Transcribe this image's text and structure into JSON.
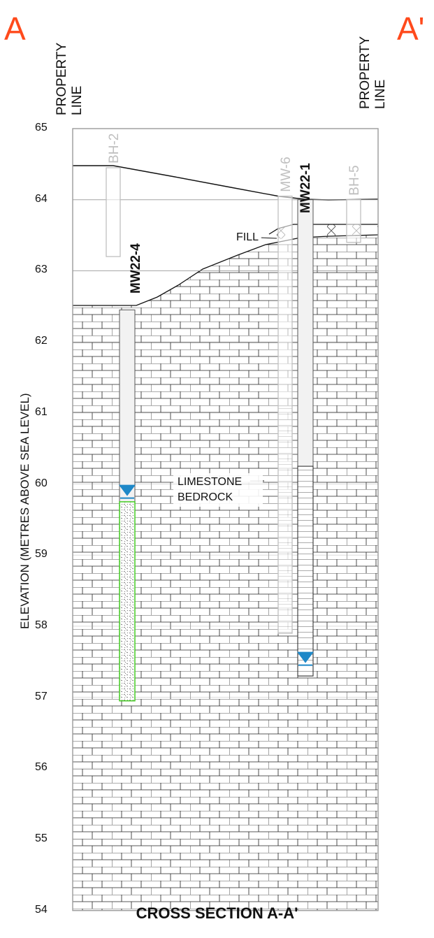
{
  "section_corners": {
    "left": "A",
    "right": "A'"
  },
  "property_lines": {
    "left": "PROPERTY\nLINE",
    "right": "PROPERTY\nLINE"
  },
  "axis": {
    "ylabel": "ELEVATION (METRES ABOVE SEA LEVEL)",
    "ticks": [
      "65",
      "64",
      "63",
      "62",
      "61",
      "60",
      "59",
      "58",
      "57",
      "56",
      "55",
      "54"
    ],
    "ylim": [
      54,
      65
    ]
  },
  "title": "CROSS SECTION A-A'",
  "annotations": {
    "fill": "FILL",
    "limestone": "LIMESTONE\nBEDROCK"
  },
  "borings": {
    "active": [
      {
        "id": "MW22-4",
        "top_elev": 62.45,
        "bottom_elev": 56.95,
        "screen_top": 59.75,
        "water_level": 59.9
      },
      {
        "id": "MW22-1",
        "top_elev": 64.0,
        "bottom_elev": 57.3,
        "screen_top": 60.25,
        "water_level": 57.55
      }
    ],
    "historic": [
      {
        "id": "BH-2",
        "top_elev": 64.45,
        "bottom_elev": 63.2
      },
      {
        "id": "MW-6",
        "top_elev": 64.05,
        "bottom_elev": 57.9
      },
      {
        "id": "BH-5",
        "top_elev": 64.0,
        "bottom_elev": 63.4
      }
    ]
  },
  "colors": {
    "water_level": "#1e88c8",
    "screen_outline": "#44cc22",
    "historic": "#bfbfbf",
    "corner_letters": "#ff4a1c"
  }
}
